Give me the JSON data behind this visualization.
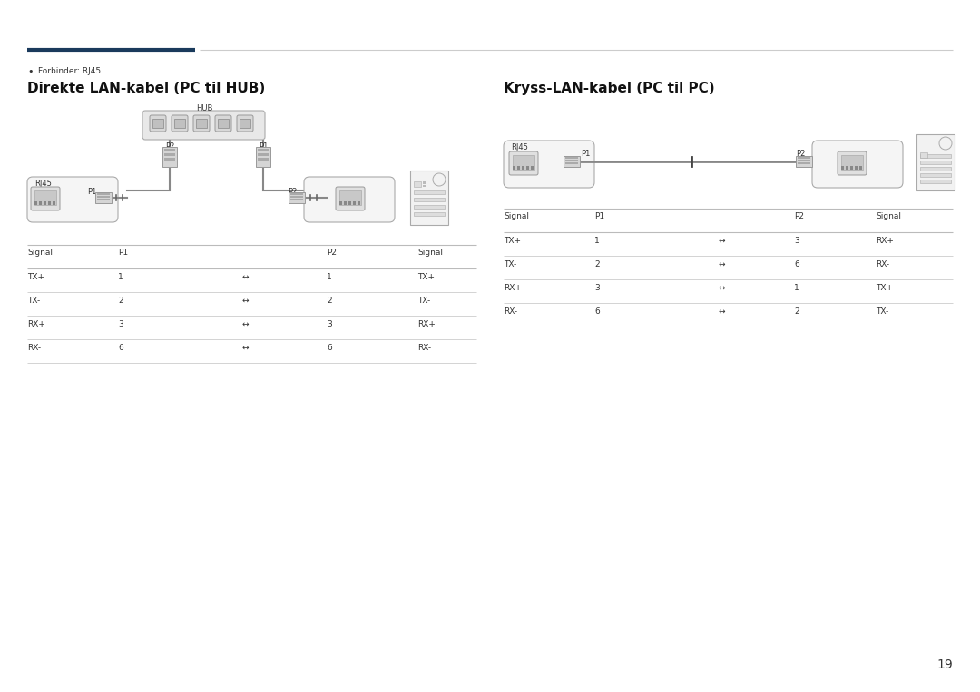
{
  "bg_color": "#ffffff",
  "page_number": "19",
  "header_line_color": "#1a3a5c",
  "bullet_text": "Forbinder: RJ45",
  "left_title": "Direkte LAN-kabel (PC til HUB)",
  "right_title": "Kryss-LAN-kabel (PC til PC)",
  "left_table_rows": [
    [
      "TX+",
      "1",
      "↔",
      "1",
      "TX+"
    ],
    [
      "TX-",
      "2",
      "↔",
      "2",
      "TX-"
    ],
    [
      "RX+",
      "3",
      "↔",
      "3",
      "RX+"
    ],
    [
      "RX-",
      "6",
      "↔",
      "6",
      "RX-"
    ]
  ],
  "right_table_rows": [
    [
      "TX+",
      "1",
      "↔",
      "3",
      "RX+"
    ],
    [
      "TX-",
      "2",
      "↔",
      "6",
      "RX-"
    ],
    [
      "RX+",
      "3",
      "↔",
      "1",
      "TX+"
    ],
    [
      "RX-",
      "6",
      "↔",
      "2",
      "TX-"
    ]
  ],
  "text_color": "#333333",
  "title_fontsize": 11,
  "body_fontsize": 8,
  "small_fontsize": 6.5,
  "label_fontsize": 6
}
